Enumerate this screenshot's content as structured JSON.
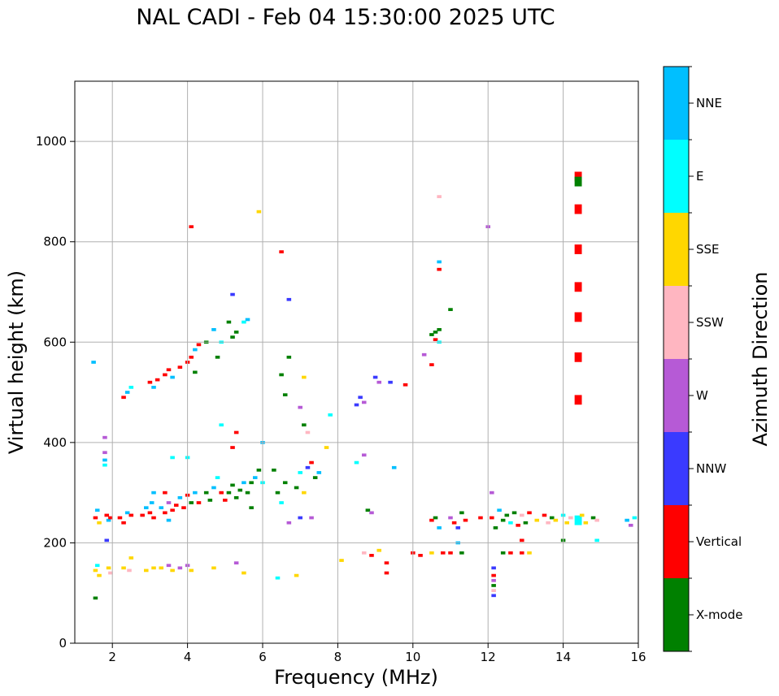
{
  "chart_data": {
    "type": "scatter",
    "title": "NAL CADI - Feb 04 15:30:00 2025 UTC",
    "xlabel": "Frequency (MHz)",
    "ylabel": "Virtual height (km)",
    "xlim": [
      1,
      16
    ],
    "ylim": [
      0,
      1120
    ],
    "xticks": [
      2,
      4,
      6,
      8,
      10,
      12,
      14,
      16
    ],
    "yticks": [
      0,
      200,
      400,
      600,
      800,
      1000
    ],
    "grid": true,
    "colorbar": {
      "label": "Azimuth Direction",
      "categories": [
        {
          "name": "X-mode",
          "color": "#008000"
        },
        {
          "name": "Vertical",
          "color": "#ff0000"
        },
        {
          "name": "NNW",
          "color": "#3a3aff"
        },
        {
          "name": "W",
          "color": "#b65ad6"
        },
        {
          "name": "SSW",
          "color": "#ffb6c1"
        },
        {
          "name": "SSE",
          "color": "#ffd700"
        },
        {
          "name": "E",
          "color": "#00ffff"
        },
        {
          "name": "NNE",
          "color": "#00bfff"
        }
      ]
    },
    "cell_size": {
      "freq_mhz": 0.12,
      "height_km": 6
    },
    "points": [
      {
        "f": 1.5,
        "h": 560,
        "d": "NNE"
      },
      {
        "f": 1.55,
        "h": 250,
        "d": "Vertical"
      },
      {
        "f": 1.6,
        "h": 265,
        "d": "NNE"
      },
      {
        "f": 1.65,
        "h": 240,
        "d": "SSE"
      },
      {
        "f": 1.55,
        "h": 145,
        "d": "SSE"
      },
      {
        "f": 1.6,
        "h": 155,
        "d": "E"
      },
      {
        "f": 1.65,
        "h": 135,
        "d": "SSE"
      },
      {
        "f": 1.55,
        "h": 90,
        "d": "X-mode"
      },
      {
        "f": 1.8,
        "h": 365,
        "d": "NNE"
      },
      {
        "f": 1.8,
        "h": 380,
        "d": "W"
      },
      {
        "f": 1.8,
        "h": 355,
        "d": "E"
      },
      {
        "f": 1.8,
        "h": 410,
        "d": "W"
      },
      {
        "f": 1.85,
        "h": 255,
        "d": "Vertical"
      },
      {
        "f": 1.9,
        "h": 245,
        "d": "NNE"
      },
      {
        "f": 1.85,
        "h": 205,
        "d": "NNW"
      },
      {
        "f": 1.9,
        "h": 150,
        "d": "SSE"
      },
      {
        "f": 1.95,
        "h": 140,
        "d": "SSW"
      },
      {
        "f": 1.95,
        "h": 250,
        "d": "Vertical"
      },
      {
        "f": 2.3,
        "h": 490,
        "d": "Vertical"
      },
      {
        "f": 2.4,
        "h": 500,
        "d": "NNE"
      },
      {
        "f": 2.5,
        "h": 510,
        "d": "E"
      },
      {
        "f": 2.2,
        "h": 250,
        "d": "Vertical"
      },
      {
        "f": 2.3,
        "h": 240,
        "d": "Vertical"
      },
      {
        "f": 2.4,
        "h": 260,
        "d": "NNE"
      },
      {
        "f": 2.5,
        "h": 255,
        "d": "Vertical"
      },
      {
        "f": 2.45,
        "h": 145,
        "d": "SSW"
      },
      {
        "f": 2.5,
        "h": 170,
        "d": "SSE"
      },
      {
        "f": 2.3,
        "h": 150,
        "d": "SSE"
      },
      {
        "f": 2.8,
        "h": 255,
        "d": "Vertical"
      },
      {
        "f": 2.9,
        "h": 270,
        "d": "NNE"
      },
      {
        "f": 3.0,
        "h": 260,
        "d": "Vertical"
      },
      {
        "f": 3.05,
        "h": 280,
        "d": "NNE"
      },
      {
        "f": 3.1,
        "h": 300,
        "d": "NNE"
      },
      {
        "f": 3.1,
        "h": 250,
        "d": "Vertical"
      },
      {
        "f": 2.9,
        "h": 145,
        "d": "SSE"
      },
      {
        "f": 3.1,
        "h": 150,
        "d": "SSE"
      },
      {
        "f": 3.0,
        "h": 520,
        "d": "Vertical"
      },
      {
        "f": 3.1,
        "h": 510,
        "d": "NNE"
      },
      {
        "f": 3.2,
        "h": 525,
        "d": "Vertical"
      },
      {
        "f": 3.3,
        "h": 270,
        "d": "NNE"
      },
      {
        "f": 3.4,
        "h": 260,
        "d": "Vertical"
      },
      {
        "f": 3.5,
        "h": 280,
        "d": "W"
      },
      {
        "f": 3.6,
        "h": 265,
        "d": "Vertical"
      },
      {
        "f": 3.5,
        "h": 245,
        "d": "NNE"
      },
      {
        "f": 3.4,
        "h": 300,
        "d": "Vertical"
      },
      {
        "f": 3.3,
        "h": 150,
        "d": "SSE"
      },
      {
        "f": 3.5,
        "h": 155,
        "d": "W"
      },
      {
        "f": 3.6,
        "h": 145,
        "d": "SSE"
      },
      {
        "f": 3.4,
        "h": 535,
        "d": "Vertical"
      },
      {
        "f": 3.5,
        "h": 545,
        "d": "Vertical"
      },
      {
        "f": 3.6,
        "h": 530,
        "d": "NNE"
      },
      {
        "f": 3.6,
        "h": 370,
        "d": "E"
      },
      {
        "f": 3.7,
        "h": 275,
        "d": "Vertical"
      },
      {
        "f": 3.8,
        "h": 290,
        "d": "NNE"
      },
      {
        "f": 3.9,
        "h": 270,
        "d": "Vertical"
      },
      {
        "f": 4.0,
        "h": 295,
        "d": "Vertical"
      },
      {
        "f": 4.1,
        "h": 280,
        "d": "X-mode"
      },
      {
        "f": 4.2,
        "h": 300,
        "d": "NNE"
      },
      {
        "f": 4.3,
        "h": 280,
        "d": "Vertical"
      },
      {
        "f": 3.8,
        "h": 150,
        "d": "W"
      },
      {
        "f": 4.0,
        "h": 155,
        "d": "W"
      },
      {
        "f": 4.1,
        "h": 145,
        "d": "SSE"
      },
      {
        "f": 3.8,
        "h": 550,
        "d": "Vertical"
      },
      {
        "f": 4.0,
        "h": 560,
        "d": "Vertical"
      },
      {
        "f": 4.1,
        "h": 570,
        "d": "Vertical"
      },
      {
        "f": 4.2,
        "h": 585,
        "d": "NNE"
      },
      {
        "f": 4.3,
        "h": 595,
        "d": "Vertical"
      },
      {
        "f": 4.2,
        "h": 540,
        "d": "X-mode"
      },
      {
        "f": 4.0,
        "h": 370,
        "d": "E"
      },
      {
        "f": 4.1,
        "h": 830,
        "d": "Vertical"
      },
      {
        "f": 4.5,
        "h": 300,
        "d": "X-mode"
      },
      {
        "f": 4.6,
        "h": 285,
        "d": "X-mode"
      },
      {
        "f": 4.7,
        "h": 310,
        "d": "NNE"
      },
      {
        "f": 4.9,
        "h": 300,
        "d": "Vertical"
      },
      {
        "f": 5.0,
        "h": 285,
        "d": "Vertical"
      },
      {
        "f": 4.8,
        "h": 330,
        "d": "E"
      },
      {
        "f": 4.7,
        "h": 150,
        "d": "SSE"
      },
      {
        "f": 4.5,
        "h": 600,
        "d": "X-mode"
      },
      {
        "f": 4.7,
        "h": 625,
        "d": "NNE"
      },
      {
        "f": 4.9,
        "h": 600,
        "d": "E"
      },
      {
        "f": 4.8,
        "h": 570,
        "d": "X-mode"
      },
      {
        "f": 4.9,
        "h": 435,
        "d": "E"
      },
      {
        "f": 5.1,
        "h": 300,
        "d": "X-mode"
      },
      {
        "f": 5.2,
        "h": 315,
        "d": "X-mode"
      },
      {
        "f": 5.3,
        "h": 290,
        "d": "X-mode"
      },
      {
        "f": 5.4,
        "h": 305,
        "d": "X-mode"
      },
      {
        "f": 5.5,
        "h": 320,
        "d": "NNE"
      },
      {
        "f": 5.6,
        "h": 300,
        "d": "X-mode"
      },
      {
        "f": 5.2,
        "h": 390,
        "d": "Vertical"
      },
      {
        "f": 5.3,
        "h": 420,
        "d": "Vertical"
      },
      {
        "f": 5.1,
        "h": 640,
        "d": "X-mode"
      },
      {
        "f": 5.2,
        "h": 610,
        "d": "X-mode"
      },
      {
        "f": 5.3,
        "h": 620,
        "d": "X-mode"
      },
      {
        "f": 5.5,
        "h": 640,
        "d": "E"
      },
      {
        "f": 5.2,
        "h": 695,
        "d": "NNW"
      },
      {
        "f": 5.3,
        "h": 160,
        "d": "W"
      },
      {
        "f": 5.5,
        "h": 140,
        "d": "SSE"
      },
      {
        "f": 5.7,
        "h": 320,
        "d": "X-mode"
      },
      {
        "f": 5.8,
        "h": 330,
        "d": "NNE"
      },
      {
        "f": 5.9,
        "h": 345,
        "d": "X-mode"
      },
      {
        "f": 6.0,
        "h": 320,
        "d": "E"
      },
      {
        "f": 5.7,
        "h": 270,
        "d": "X-mode"
      },
      {
        "f": 5.6,
        "h": 645,
        "d": "NNE"
      },
      {
        "f": 6.0,
        "h": 400,
        "d": "NNE"
      },
      {
        "f": 5.9,
        "h": 860,
        "d": "SSE"
      },
      {
        "f": 6.3,
        "h": 345,
        "d": "X-mode"
      },
      {
        "f": 6.4,
        "h": 300,
        "d": "X-mode"
      },
      {
        "f": 6.5,
        "h": 280,
        "d": "E"
      },
      {
        "f": 6.6,
        "h": 320,
        "d": "X-mode"
      },
      {
        "f": 6.5,
        "h": 535,
        "d": "X-mode"
      },
      {
        "f": 6.7,
        "h": 570,
        "d": "X-mode"
      },
      {
        "f": 6.6,
        "h": 495,
        "d": "X-mode"
      },
      {
        "f": 6.5,
        "h": 780,
        "d": "Vertical"
      },
      {
        "f": 6.7,
        "h": 685,
        "d": "NNW"
      },
      {
        "f": 6.4,
        "h": 130,
        "d": "E"
      },
      {
        "f": 6.7,
        "h": 240,
        "d": "W"
      },
      {
        "f": 6.9,
        "h": 310,
        "d": "X-mode"
      },
      {
        "f": 7.0,
        "h": 340,
        "d": "E"
      },
      {
        "f": 7.1,
        "h": 300,
        "d": "SSE"
      },
      {
        "f": 7.2,
        "h": 350,
        "d": "NNW"
      },
      {
        "f": 7.3,
        "h": 360,
        "d": "Vertical"
      },
      {
        "f": 7.4,
        "h": 330,
        "d": "X-mode"
      },
      {
        "f": 7.0,
        "h": 470,
        "d": "W"
      },
      {
        "f": 7.1,
        "h": 435,
        "d": "X-mode"
      },
      {
        "f": 7.2,
        "h": 420,
        "d": "SSW"
      },
      {
        "f": 7.0,
        "h": 250,
        "d": "NNW"
      },
      {
        "f": 6.9,
        "h": 135,
        "d": "SSE"
      },
      {
        "f": 7.1,
        "h": 530,
        "d": "SSE"
      },
      {
        "f": 7.3,
        "h": 250,
        "d": "W"
      },
      {
        "f": 7.5,
        "h": 340,
        "d": "NNE"
      },
      {
        "f": 7.7,
        "h": 390,
        "d": "SSE"
      },
      {
        "f": 7.8,
        "h": 455,
        "d": "E"
      },
      {
        "f": 8.1,
        "h": 165,
        "d": "SSE"
      },
      {
        "f": 8.5,
        "h": 475,
        "d": "NNW"
      },
      {
        "f": 8.6,
        "h": 490,
        "d": "NNW"
      },
      {
        "f": 8.7,
        "h": 480,
        "d": "W"
      },
      {
        "f": 8.5,
        "h": 360,
        "d": "E"
      },
      {
        "f": 8.7,
        "h": 375,
        "d": "W"
      },
      {
        "f": 8.8,
        "h": 265,
        "d": "X-mode"
      },
      {
        "f": 8.9,
        "h": 260,
        "d": "W"
      },
      {
        "f": 8.7,
        "h": 180,
        "d": "SSW"
      },
      {
        "f": 8.9,
        "h": 175,
        "d": "Vertical"
      },
      {
        "f": 9.0,
        "h": 530,
        "d": "NNW"
      },
      {
        "f": 9.1,
        "h": 520,
        "d": "W"
      },
      {
        "f": 9.4,
        "h": 520,
        "d": "NNW"
      },
      {
        "f": 9.1,
        "h": 185,
        "d": "SSE"
      },
      {
        "f": 9.3,
        "h": 160,
        "d": "Vertical"
      },
      {
        "f": 9.5,
        "h": 350,
        "d": "NNE"
      },
      {
        "f": 9.8,
        "h": 515,
        "d": "Vertical"
      },
      {
        "f": 9.3,
        "h": 140,
        "d": "Vertical"
      },
      {
        "f": 10.0,
        "h": 180,
        "d": "Vertical"
      },
      {
        "f": 10.2,
        "h": 175,
        "d": "Vertical"
      },
      {
        "f": 10.5,
        "h": 245,
        "d": "Vertical"
      },
      {
        "f": 10.6,
        "h": 250,
        "d": "X-mode"
      },
      {
        "f": 10.7,
        "h": 230,
        "d": "NNE"
      },
      {
        "f": 10.8,
        "h": 180,
        "d": "Vertical"
      },
      {
        "f": 10.5,
        "h": 180,
        "d": "SSE"
      },
      {
        "f": 10.3,
        "h": 575,
        "d": "W"
      },
      {
        "f": 10.5,
        "h": 555,
        "d": "Vertical"
      },
      {
        "f": 10.5,
        "h": 615,
        "d": "X-mode"
      },
      {
        "f": 10.6,
        "h": 620,
        "d": "X-mode"
      },
      {
        "f": 10.6,
        "h": 605,
        "d": "Vertical"
      },
      {
        "f": 10.7,
        "h": 625,
        "d": "X-mode"
      },
      {
        "f": 10.7,
        "h": 600,
        "d": "E"
      },
      {
        "f": 10.7,
        "h": 760,
        "d": "NNE"
      },
      {
        "f": 10.7,
        "h": 745,
        "d": "Vertical"
      },
      {
        "f": 10.7,
        "h": 890,
        "d": "SSW"
      },
      {
        "f": 11.0,
        "h": 665,
        "d": "X-mode"
      },
      {
        "f": 11.0,
        "h": 250,
        "d": "W"
      },
      {
        "f": 11.1,
        "h": 240,
        "d": "Vertical"
      },
      {
        "f": 11.2,
        "h": 230,
        "d": "NNW"
      },
      {
        "f": 11.3,
        "h": 260,
        "d": "X-mode"
      },
      {
        "f": 11.4,
        "h": 245,
        "d": "Vertical"
      },
      {
        "f": 11.0,
        "h": 180,
        "d": "Vertical"
      },
      {
        "f": 11.3,
        "h": 180,
        "d": "X-mode"
      },
      {
        "f": 11.2,
        "h": 200,
        "d": "NNE"
      },
      {
        "f": 11.8,
        "h": 250,
        "d": "Vertical"
      },
      {
        "f": 12.0,
        "h": 830,
        "d": "W"
      },
      {
        "f": 12.1,
        "h": 250,
        "d": "Vertical"
      },
      {
        "f": 12.1,
        "h": 300,
        "d": "W"
      },
      {
        "f": 12.2,
        "h": 230,
        "d": "X-mode"
      },
      {
        "f": 12.3,
        "h": 265,
        "d": "NNE"
      },
      {
        "f": 12.4,
        "h": 245,
        "d": "X-mode"
      },
      {
        "f": 12.5,
        "h": 255,
        "d": "X-mode"
      },
      {
        "f": 12.6,
        "h": 240,
        "d": "E"
      },
      {
        "f": 12.7,
        "h": 260,
        "d": "X-mode"
      },
      {
        "f": 12.8,
        "h": 235,
        "d": "Vertical"
      },
      {
        "f": 12.9,
        "h": 255,
        "d": "SSW"
      },
      {
        "f": 13.0,
        "h": 240,
        "d": "X-mode"
      },
      {
        "f": 13.1,
        "h": 260,
        "d": "Vertical"
      },
      {
        "f": 12.4,
        "h": 180,
        "d": "X-mode"
      },
      {
        "f": 12.6,
        "h": 180,
        "d": "Vertical"
      },
      {
        "f": 12.9,
        "h": 180,
        "d": "Vertical"
      },
      {
        "f": 13.1,
        "h": 180,
        "d": "SSE"
      },
      {
        "f": 12.9,
        "h": 205,
        "d": "Vertical"
      },
      {
        "f": 12.15,
        "h": 150,
        "d": "NNW"
      },
      {
        "f": 12.15,
        "h": 135,
        "d": "Vertical"
      },
      {
        "f": 12.15,
        "h": 125,
        "d": "W"
      },
      {
        "f": 12.15,
        "h": 115,
        "d": "X-mode"
      },
      {
        "f": 12.15,
        "h": 105,
        "d": "SSW"
      },
      {
        "f": 12.15,
        "h": 95,
        "d": "NNW"
      },
      {
        "f": 13.3,
        "h": 245,
        "d": "SSE"
      },
      {
        "f": 13.5,
        "h": 255,
        "d": "Vertical"
      },
      {
        "f": 13.6,
        "h": 240,
        "d": "SSW"
      },
      {
        "f": 13.7,
        "h": 250,
        "d": "X-mode"
      },
      {
        "f": 13.8,
        "h": 245,
        "d": "SSE"
      },
      {
        "f": 14.0,
        "h": 255,
        "d": "E"
      },
      {
        "f": 14.1,
        "h": 240,
        "d": "SSE"
      },
      {
        "f": 14.2,
        "h": 250,
        "d": "SSW"
      },
      {
        "f": 14.4,
        "h": 245,
        "d": "E"
      },
      {
        "f": 14.5,
        "h": 255,
        "d": "SSE"
      },
      {
        "f": 14.6,
        "h": 240,
        "d": "SSE"
      },
      {
        "f": 14.8,
        "h": 250,
        "d": "X-mode"
      },
      {
        "f": 14.9,
        "h": 245,
        "d": "SSW"
      },
      {
        "f": 14.0,
        "h": 205,
        "d": "X-mode"
      },
      {
        "f": 14.9,
        "h": 205,
        "d": "E"
      },
      {
        "f": 15.7,
        "h": 245,
        "d": "NNE"
      },
      {
        "f": 15.8,
        "h": 235,
        "d": "W"
      },
      {
        "f": 15.9,
        "h": 250,
        "d": "E"
      },
      {
        "f": 14.4,
        "h": 485,
        "d": "Vertical"
      },
      {
        "f": 14.4,
        "h": 570,
        "d": "Vertical"
      },
      {
        "f": 14.4,
        "h": 650,
        "d": "Vertical"
      },
      {
        "f": 14.4,
        "h": 710,
        "d": "Vertical"
      },
      {
        "f": 14.4,
        "h": 785,
        "d": "Vertical"
      },
      {
        "f": 14.4,
        "h": 865,
        "d": "Vertical"
      },
      {
        "f": 14.4,
        "h": 930,
        "d": "Vertical"
      },
      {
        "f": 14.4,
        "h": 920,
        "d": "X-mode"
      }
    ]
  }
}
